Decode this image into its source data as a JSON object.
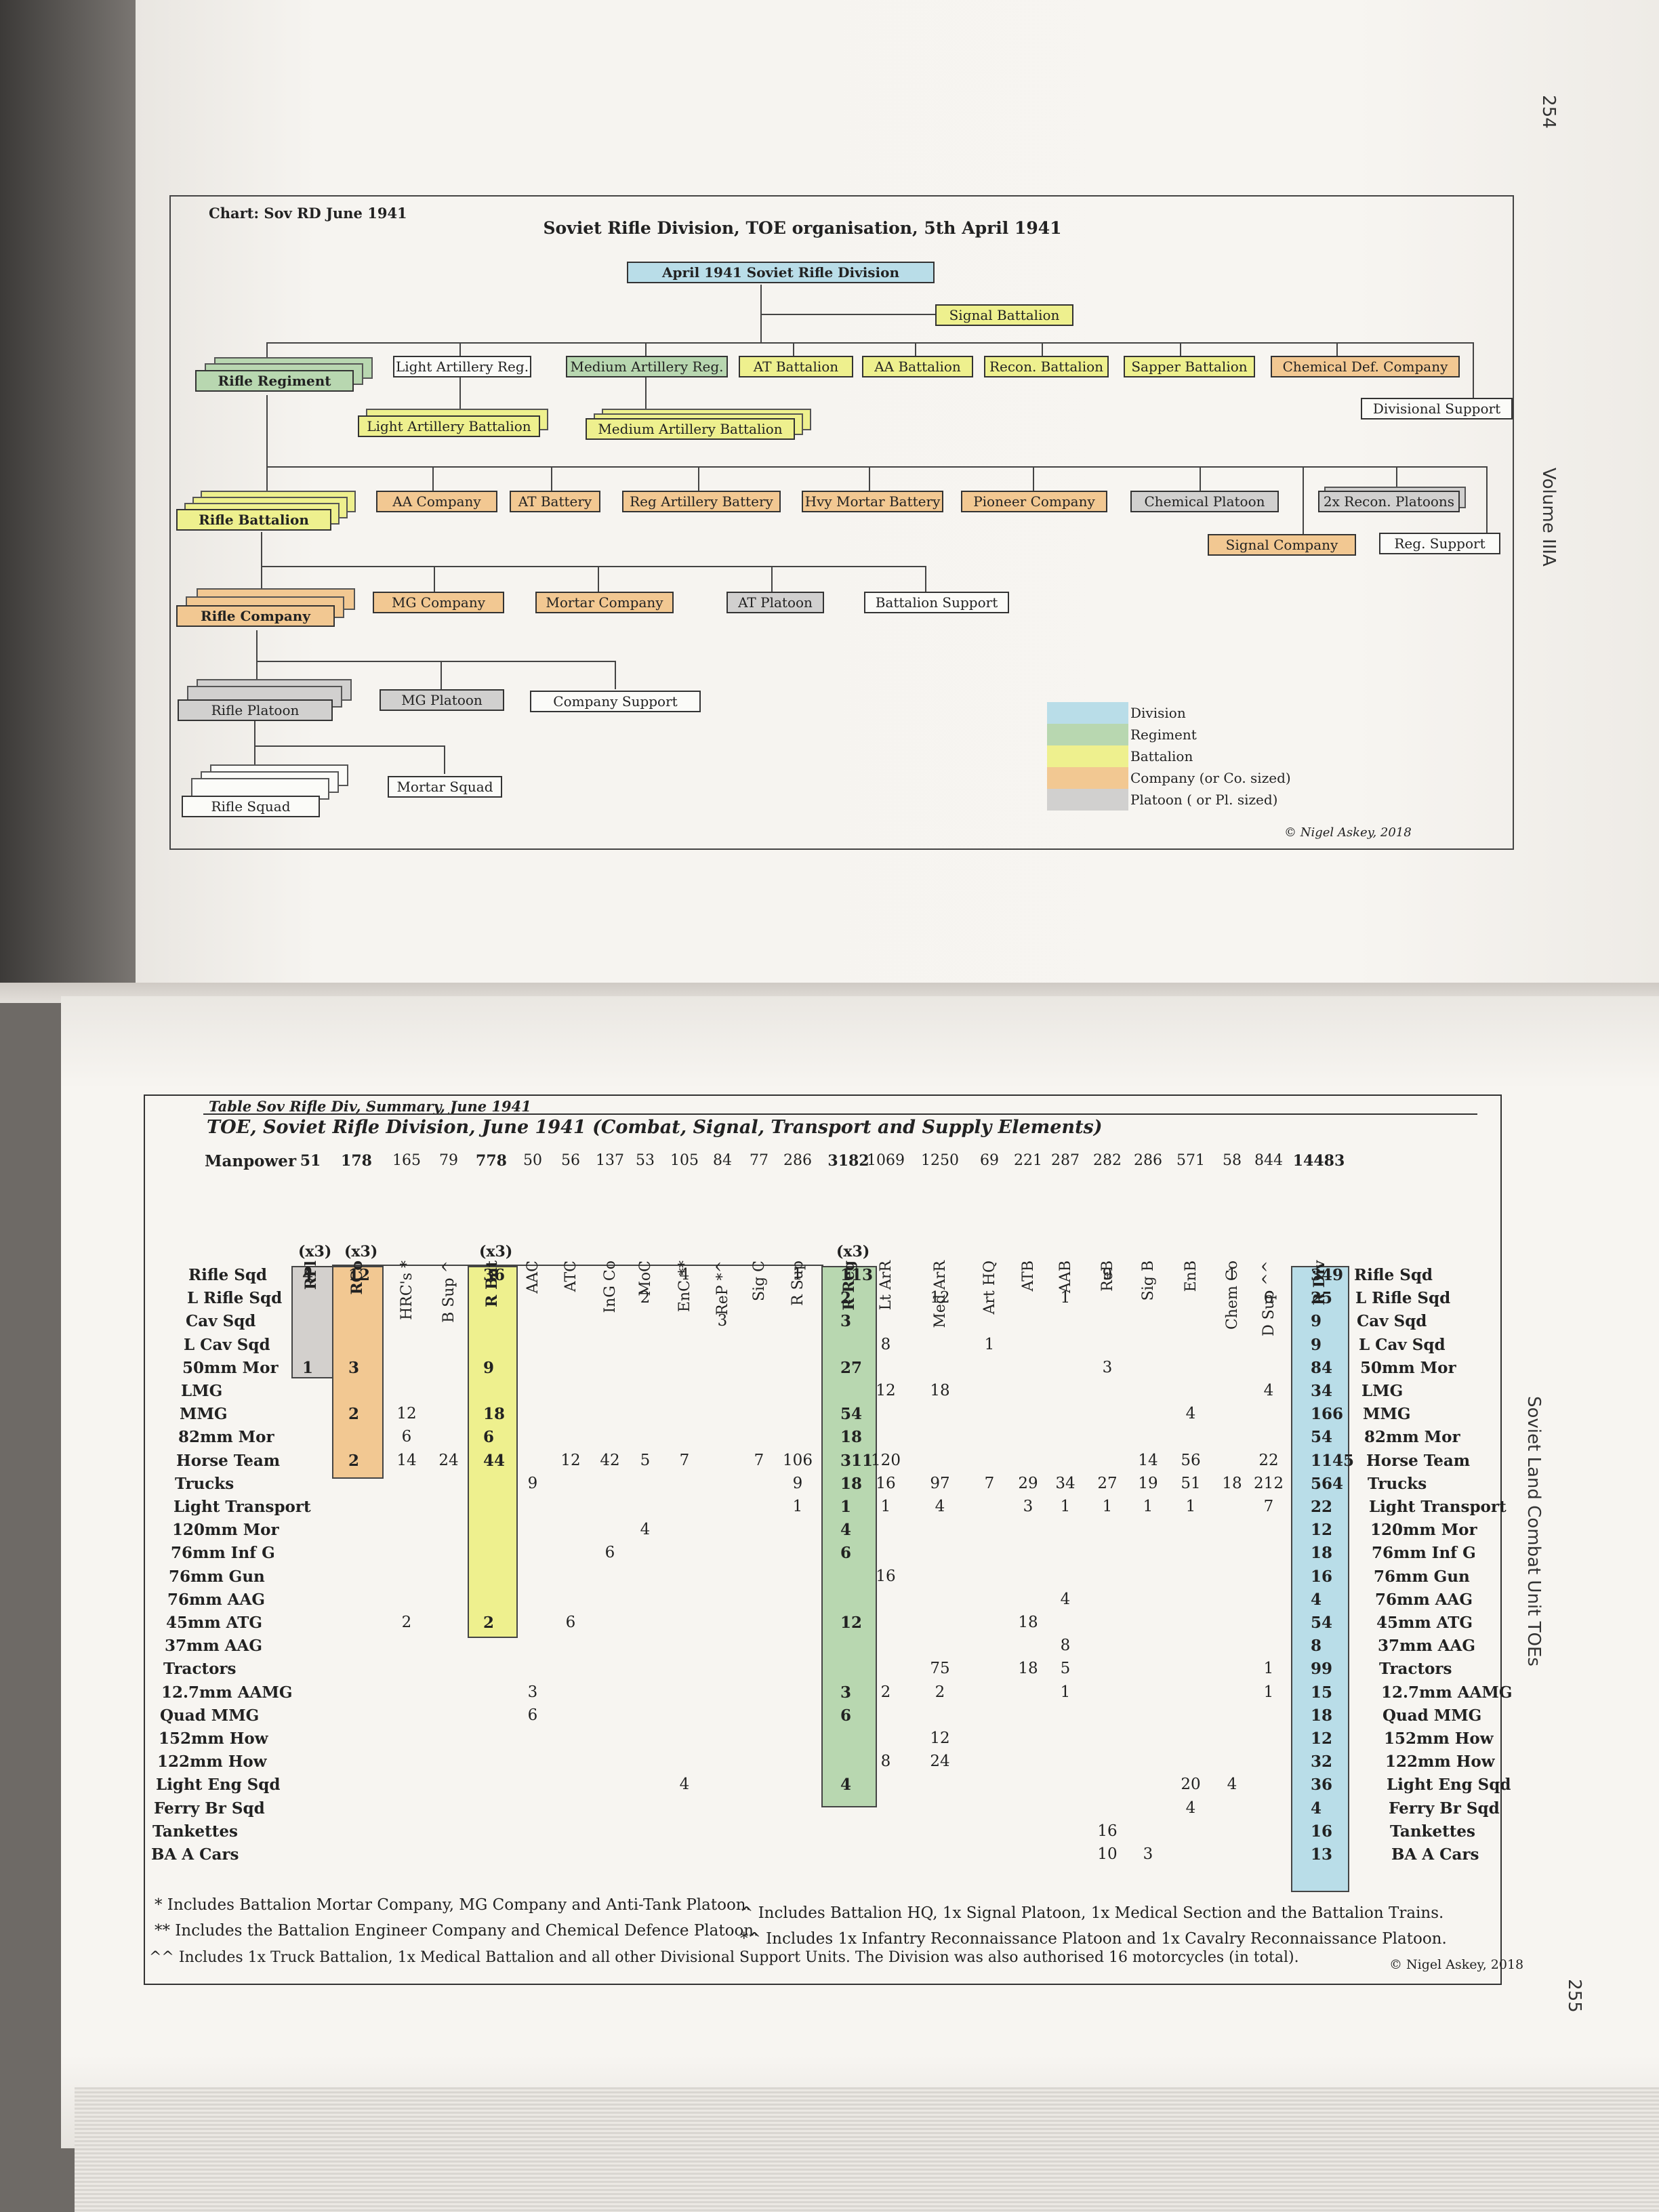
{
  "page_numbers": {
    "top": "254",
    "bottom": "255"
  },
  "side_titles": {
    "top": "Volume IIIA",
    "bottom": "Soviet Land Combat Unit TOEs"
  },
  "chart": {
    "label": "Chart: Sov RD June 1941",
    "title": "Soviet Rifle Division, TOE organisation, 5th April 1941",
    "boxes": {
      "division": "April 1941 Soviet Rifle Division",
      "signal_battalion": "Signal Battalion",
      "rifle_regiment": "Rifle Regiment",
      "light_artillery_reg": "Light Artillery Reg.",
      "medium_artillery_reg": "Medium Artillery Reg.",
      "at_battalion": "AT Battalion",
      "aa_battalion": "AA Battalion",
      "recon_battalion": "Recon. Battalion",
      "sapper_battalion": "Sapper Battalion",
      "chemical_def_company": "Chemical Def. Company",
      "divisional_support": "Divisional Support",
      "light_artillery_battalion": "Light Artillery Battalion",
      "medium_artillery_battalion": "Medium Artillery Battalion",
      "rifle_battalion": "Rifle Battalion",
      "aa_company": "AA Company",
      "at_battery": "AT Battery",
      "reg_artillery_battery": "Reg Artillery Battery",
      "hvy_mortar_battery": "Hvy Mortar Battery",
      "pioneer_company": "Pioneer Company",
      "chemical_platoon": "Chemical Platoon",
      "recon_platoons": "2x Recon. Platoons",
      "signal_company": "Signal Company",
      "reg_support": "Reg. Support",
      "rifle_company": "Rifle Company",
      "mg_company": "MG Company",
      "mortar_company": "Mortar Company",
      "at_platoon": "AT Platoon",
      "battalion_support": "Battalion Support",
      "rifle_platoon": "Rifle Platoon",
      "mg_platoon": "MG Platoon",
      "company_support": "Company Support",
      "rifle_squad": "Rifle Squad",
      "mortar_squad": "Mortar Squad"
    },
    "legend": [
      {
        "label": "Division",
        "color": "#b9dde8"
      },
      {
        "label": "Regiment",
        "color": "#b8d7b0"
      },
      {
        "label": "Battalion",
        "color": "#eef08e"
      },
      {
        "label": "Company (or Co. sized)",
        "color": "#f2c892"
      },
      {
        "label": "Platoon ( or Pl. sized)",
        "color": "#d1d0cf"
      }
    ],
    "copyright": "© Nigel Askey, 2018"
  },
  "table": {
    "label": "Table Sov Rifle Div, Summary, June 1941",
    "title": "TOE, Soviet Rifle Division, June 1941 (Combat, Signal, Transport and Supply Elements)",
    "manpower_label": "Manpower",
    "x3": "(x3)",
    "columns": [
      {
        "name": "RPl",
        "manpower": "51",
        "bold": true
      },
      {
        "name": "RCo",
        "manpower": "178",
        "bold": true
      },
      {
        "name": "HRC's *",
        "manpower": "165",
        "bold": false
      },
      {
        "name": "B Sup ^",
        "manpower": "79",
        "bold": false
      },
      {
        "name": "R Bat",
        "manpower": "778",
        "bold": true
      },
      {
        "name": "AAC",
        "manpower": "50",
        "bold": false
      },
      {
        "name": "ATC",
        "manpower": "56",
        "bold": false
      },
      {
        "name": "InG Co",
        "manpower": "137",
        "bold": false
      },
      {
        "name": "MoC",
        "manpower": "53",
        "bold": false
      },
      {
        "name": "EnC **",
        "manpower": "105",
        "bold": false
      },
      {
        "name": "ReP *^",
        "manpower": "84",
        "bold": false
      },
      {
        "name": "Sig C",
        "manpower": "77",
        "bold": false
      },
      {
        "name": "R Sup",
        "manpower": "286",
        "bold": false
      },
      {
        "name": "R Reg",
        "manpower": "3182",
        "bold": true
      },
      {
        "name": "Lt ArR",
        "manpower": "1069",
        "bold": false
      },
      {
        "name": "Med ArR",
        "manpower": "1250",
        "bold": false
      },
      {
        "name": "Art HQ",
        "manpower": "69",
        "bold": false
      },
      {
        "name": "ATB",
        "manpower": "221",
        "bold": false
      },
      {
        "name": "AAB",
        "manpower": "287",
        "bold": false
      },
      {
        "name": "ReB",
        "manpower": "282",
        "bold": false
      },
      {
        "name": "Sig B",
        "manpower": "286",
        "bold": false
      },
      {
        "name": "EnB",
        "manpower": "571",
        "bold": false
      },
      {
        "name": "Chem Co",
        "manpower": "58",
        "bold": false
      },
      {
        "name": "D Sup ^^",
        "manpower": "844",
        "bold": false
      },
      {
        "name": "R Div",
        "manpower": "14483",
        "bold": true
      }
    ],
    "rows": [
      {
        "label": "Rifle Sqd",
        "cells": {
          "RPl": "4",
          "RCo": "12",
          "R Bat": "36",
          "EnC **": "4",
          "R Sup": "1",
          "R Reg": "113",
          "ReB": "9",
          "Chem Co": "1",
          "R Div": "349"
        }
      },
      {
        "label": "L Rifle Sqd",
        "cells": {
          "MoC": "2",
          "R Reg": "2",
          "Med ArR": "12",
          "AAB": "1",
          "D Sup ^^": "6",
          "R Div": "25"
        }
      },
      {
        "label": "Cav Sqd",
        "cells": {
          "ReP *^": "3",
          "R Reg": "3",
          "R Div": "9"
        }
      },
      {
        "label": "L Cav Sqd",
        "cells": {
          "Lt ArR": "8",
          "Art HQ": "1",
          "R Div": "9"
        }
      },
      {
        "label": "50mm Mor",
        "cells": {
          "RPl": "1",
          "RCo": "3",
          "R Bat": "9",
          "R Reg": "27",
          "ReB": "3",
          "R Div": "84"
        }
      },
      {
        "label": "LMG",
        "cells": {
          "Lt ArR": "12",
          "Med ArR": "18",
          "D Sup ^^": "4",
          "R Div": "34"
        }
      },
      {
        "label": "MMG",
        "cells": {
          "RCo": "2",
          "HRC's *": "12",
          "R Bat": "18",
          "R Reg": "54",
          "EnB": "4",
          "R Div": "166"
        }
      },
      {
        "label": "82mm Mor",
        "cells": {
          "HRC's *": "6",
          "R Bat": "6",
          "R Reg": "18",
          "R Div": "54"
        }
      },
      {
        "label": "Horse Team",
        "cells": {
          "RCo": "2",
          "HRC's *": "14",
          "B Sup ^": "24",
          "R Bat": "44",
          "ATC": "12",
          "InG Co": "42",
          "MoC": "5",
          "EnC **": "7",
          "Sig C": "7",
          "R Sup": "106",
          "R Reg": "311",
          "Lt ArR": "120",
          "Sig B": "14",
          "EnB": "56",
          "D Sup ^^": "22",
          "R Div": "1145"
        }
      },
      {
        "label": "Trucks",
        "cells": {
          "AAC": "9",
          "R Sup": "9",
          "R Reg": "18",
          "Lt ArR": "16",
          "Med ArR": "97",
          "Art HQ": "7",
          "ATB": "29",
          "AAB": "34",
          "ReB": "27",
          "Sig B": "19",
          "EnB": "51",
          "Chem Co": "18",
          "D Sup ^^": "212",
          "R Div": "564"
        }
      },
      {
        "label": "Light Transport",
        "cells": {
          "R Sup": "1",
          "R Reg": "1",
          "Lt ArR": "1",
          "Med ArR": "4",
          "ATB": "3",
          "AAB": "1",
          "ReB": "1",
          "Sig B": "1",
          "EnB": "1",
          "D Sup ^^": "7",
          "R Div": "22"
        }
      },
      {
        "label": "120mm Mor",
        "cells": {
          "MoC": "4",
          "R Reg": "4",
          "R Div": "12"
        }
      },
      {
        "label": "76mm Inf G",
        "cells": {
          "InG Co": "6",
          "R Reg": "6",
          "R Div": "18"
        }
      },
      {
        "label": "76mm Gun",
        "cells": {
          "Lt ArR": "16",
          "R Div": "16"
        }
      },
      {
        "label": "76mm AAG",
        "cells": {
          "AAB": "4",
          "R Div": "4"
        }
      },
      {
        "label": "45mm ATG",
        "cells": {
          "HRC's *": "2",
          "R Bat": "2",
          "ATC": "6",
          "R Reg": "12",
          "ATB": "18",
          "R Div": "54"
        }
      },
      {
        "label": "37mm AAG",
        "cells": {
          "AAB": "8",
          "R Div": "8"
        }
      },
      {
        "label": "Tractors",
        "cells": {
          "Med ArR": "75",
          "ATB": "18",
          "AAB": "5",
          "D Sup ^^": "1",
          "R Div": "99"
        }
      },
      {
        "label": "12.7mm AAMG",
        "cells": {
          "AAC": "3",
          "R Reg": "3",
          "Lt ArR": "2",
          "Med ArR": "2",
          "AAB": "1",
          "D Sup ^^": "1",
          "R Div": "15"
        }
      },
      {
        "label": "Quad MMG",
        "cells": {
          "AAC": "6",
          "R Reg": "6",
          "R Div": "18"
        }
      },
      {
        "label": "152mm How",
        "cells": {
          "Med ArR": "12",
          "R Div": "12"
        }
      },
      {
        "label": "122mm How",
        "cells": {
          "Lt ArR": "8",
          "Med ArR": "24",
          "R Div": "32"
        }
      },
      {
        "label": "Light Eng Sqd",
        "cells": {
          "EnC **": "4",
          "R Reg": "4",
          "EnB": "20",
          "Chem Co": "4",
          "R Div": "36"
        }
      },
      {
        "label": "Ferry Br Sqd",
        "cells": {
          "EnB": "4",
          "R Div": "4"
        }
      },
      {
        "label": "Tankettes",
        "cells": {
          "ReB": "16",
          "R Div": "16"
        }
      },
      {
        "label": "BA A Cars",
        "cells": {
          "ReB": "10",
          "Sig B": "3",
          "R Div": "13"
        }
      }
    ],
    "footnotes": [
      "* Includes Battalion Mortar Company, MG Company and Anti-Tank Platoon.",
      "^ Includes Battalion HQ, 1x Signal Platoon, 1x Medical Section and the Battalion Trains.",
      "** Includes the Battalion Engineer Company and Chemical Defence Platoon.",
      "*^ Includes 1x Infantry Reconnaissance Platoon and 1x Cavalry Reconnaissance Platoon.",
      "^^ Includes 1x Truck Battalion, 1x Medical Battalion and all other Divisional Support Units. The Division was also authorised 16 motorcycles (in total)."
    ],
    "copyright": "© Nigel Askey, 2018"
  }
}
